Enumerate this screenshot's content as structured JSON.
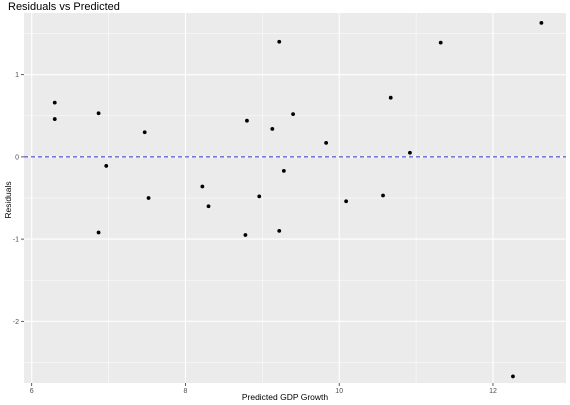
{
  "chart_data": {
    "type": "scatter",
    "title": "Residuals vs Predicted",
    "xlabel": "Predicted GDP Growth",
    "ylabel": "Residuals",
    "xlim": [
      5.9,
      12.95
    ],
    "ylim": [
      -2.75,
      1.75
    ],
    "x_ticks": [
      6,
      8,
      10,
      12
    ],
    "y_ticks": [
      -2,
      -1,
      0,
      1
    ],
    "x_tick_labels": [
      "6",
      "8",
      "10",
      "12"
    ],
    "y_tick_labels": [
      "-2",
      "-1",
      "0",
      "1"
    ],
    "grid": true,
    "panel_color": "#ebebeb",
    "grid_color": "#ffffff",
    "point_color": "#000000",
    "reference_line": {
      "y": 0,
      "style": "dashed",
      "color": "#3333cc"
    },
    "points": [
      {
        "x": 6.3,
        "y": 0.66
      },
      {
        "x": 6.3,
        "y": 0.46
      },
      {
        "x": 6.87,
        "y": 0.53
      },
      {
        "x": 6.87,
        "y": -0.92
      },
      {
        "x": 6.97,
        "y": -0.11
      },
      {
        "x": 7.47,
        "y": 0.3
      },
      {
        "x": 7.52,
        "y": -0.5
      },
      {
        "x": 8.22,
        "y": -0.36
      },
      {
        "x": 8.3,
        "y": -0.6
      },
      {
        "x": 8.78,
        "y": -0.95
      },
      {
        "x": 8.8,
        "y": 0.44
      },
      {
        "x": 8.96,
        "y": -0.48
      },
      {
        "x": 9.13,
        "y": 0.34
      },
      {
        "x": 9.22,
        "y": 1.4
      },
      {
        "x": 9.22,
        "y": -0.9
      },
      {
        "x": 9.28,
        "y": -0.17
      },
      {
        "x": 9.4,
        "y": 0.52
      },
      {
        "x": 9.83,
        "y": 0.17
      },
      {
        "x": 10.09,
        "y": -0.54
      },
      {
        "x": 10.57,
        "y": -0.47
      },
      {
        "x": 10.67,
        "y": 0.72
      },
      {
        "x": 10.92,
        "y": 0.05
      },
      {
        "x": 11.32,
        "y": 1.39
      },
      {
        "x": 12.26,
        "y": -2.67
      },
      {
        "x": 12.63,
        "y": 1.63
      }
    ]
  }
}
